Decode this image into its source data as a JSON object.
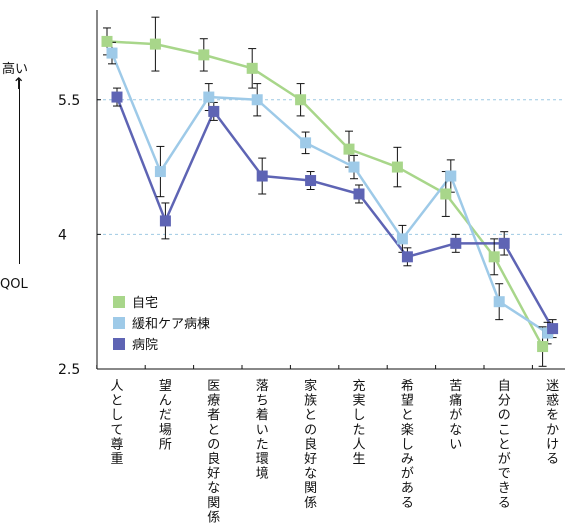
{
  "y_axis": {
    "high_label": "高い",
    "low_label": "QOL"
  },
  "colors": {
    "home": "#a8d68a",
    "palliative": "#9ecae8",
    "hospital": "#5e64b4",
    "gridline": "#9ec9e3",
    "errorbar": "#111111"
  },
  "chart_data": {
    "type": "line",
    "title": "",
    "xlabel": "",
    "ylabel": "",
    "ylim": [
      2.5,
      6.5
    ],
    "yticks": [
      "2.5",
      "4",
      "5.5"
    ],
    "reference_lines": [
      4,
      5.5
    ],
    "grid": false,
    "legend_position": "bottom-left",
    "categories": [
      "人として尊重",
      "望んだ場所",
      "医療者との良好な関係",
      "落ち着いた環境",
      "家族との良好な関係",
      "充実した人生",
      "希望と楽しみがある",
      "苦痛がない",
      "自分のことができる",
      "迷惑をかける"
    ],
    "series": [
      {
        "name": "自宅",
        "color": "#a8d68a",
        "values": [
          6.15,
          6.12,
          6.0,
          5.85,
          5.5,
          4.95,
          4.75,
          4.45,
          3.75,
          2.75
        ],
        "error": [
          0.15,
          0.3,
          0.18,
          0.22,
          0.18,
          0.2,
          0.22,
          0.25,
          0.2,
          0.22
        ]
      },
      {
        "name": "緩和ケア病棟",
        "color": "#9ecae8",
        "values": [
          6.02,
          4.7,
          5.53,
          5.5,
          5.02,
          4.75,
          3.95,
          4.65,
          3.25,
          2.9
        ],
        "error": [
          0.12,
          0.28,
          0.15,
          0.18,
          0.12,
          0.13,
          0.15,
          0.18,
          0.2,
          0.12
        ]
      },
      {
        "name": "病院",
        "color": "#5e64b4",
        "values": [
          5.53,
          4.15,
          5.37,
          4.65,
          4.6,
          4.45,
          3.75,
          3.9,
          3.9,
          2.95
        ],
        "error": [
          0.1,
          0.2,
          0.1,
          0.2,
          0.1,
          0.1,
          0.1,
          0.1,
          0.13,
          0.1
        ]
      }
    ]
  }
}
